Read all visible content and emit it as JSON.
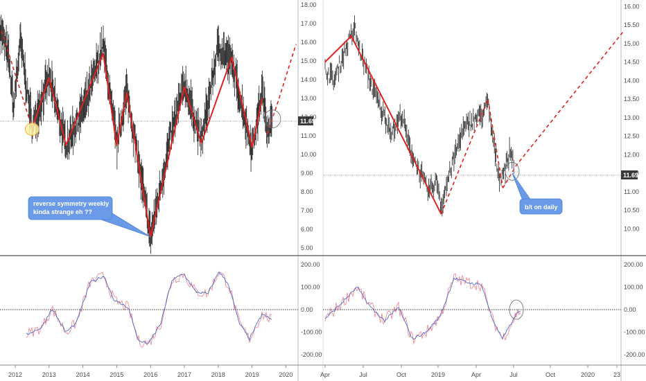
{
  "colors": {
    "bars": "#1a1a1a",
    "zigzag": "#e0201e",
    "ma_signal": "#4a68c8",
    "cci": "#f08c96",
    "callout_fill": "#6b9be8",
    "price_tag": "#3a3a3a",
    "grid_line": "#555555",
    "highlight_yellow": "#fdf3a6",
    "highlight_orange": "#f0a020"
  },
  "chart_data": [
    {
      "type": "candlestick",
      "panel": "weekly-price",
      "timeframe": "weekly",
      "x_ticks": [
        "2012",
        "2013",
        "2014",
        "2015",
        "2016",
        "2017",
        "2018",
        "2019",
        "2020"
      ],
      "y_ticks": [
        "5.00",
        "6.00",
        "7.00",
        "8.00",
        "9.00",
        "10.00",
        "11.00",
        "12.00",
        "13.00",
        "14.00",
        "15.00",
        "16.00",
        "17.00",
        "18.00"
      ],
      "ylim": [
        4.6,
        18.2
      ],
      "last_price": "11.69",
      "zigzag_solid": [
        [
          2012.5,
          11.4
        ],
        [
          2013.0,
          14.1
        ],
        [
          2013.5,
          10.5
        ],
        [
          2014.6,
          15.4
        ],
        [
          2015.0,
          10.5
        ],
        [
          2015.3,
          13.3
        ],
        [
          2016.0,
          5.6
        ],
        [
          2017.0,
          13.6
        ],
        [
          2017.5,
          10.6
        ],
        [
          2018.4,
          15.2
        ],
        [
          2019.0,
          10.4
        ],
        [
          2019.3,
          13.0
        ]
      ],
      "zigzag_dashed": [
        [
          2011.6,
          16.6
        ],
        [
          2012.5,
          11.4
        ]
      ],
      "projection_dashed": [
        [
          2019.45,
          11.1
        ],
        [
          2019.8,
          13.0
        ],
        [
          2020.3,
          15.9
        ]
      ],
      "highlights": [
        {
          "x": 2012.5,
          "y": 11.35,
          "style": "yellow"
        },
        {
          "x": 2019.6,
          "y": 11.9,
          "style": "outline"
        }
      ],
      "callout": {
        "line1": "reverse symmetry weekly",
        "line2": "kinda strange eh ??",
        "target": [
          2016.0,
          5.6
        ]
      }
    },
    {
      "type": "candlestick",
      "panel": "daily-price",
      "timeframe": "daily",
      "x_ticks": [
        "Apr",
        "Jul",
        "Oct",
        "2019",
        "Apr",
        "Jul",
        "Oct",
        "2020",
        "23"
      ],
      "y_ticks": [
        "10.00",
        "10.50",
        "11.00",
        "11.50",
        "12.00",
        "12.50",
        "13.00",
        "13.50",
        "14.00",
        "14.50",
        "15.00",
        "15.50",
        "16.00"
      ],
      "ylim": [
        9.8,
        16.1
      ],
      "last_price": "11.69",
      "zigzag_solid": [
        [
          0.0,
          14.5
        ],
        [
          1.4,
          15.2
        ],
        [
          6.2,
          10.4
        ]
      ],
      "zigzag_dashed": [
        [
          6.2,
          10.4
        ],
        [
          8.7,
          13.5
        ],
        [
          9.5,
          11.1
        ]
      ],
      "projection_dashed": [
        [
          9.5,
          11.1
        ],
        [
          10.2,
          11.7
        ],
        [
          15.9,
          15.3
        ]
      ],
      "highlights": [
        {
          "x": 10.0,
          "y": 11.55,
          "style": "outline"
        }
      ],
      "callout": {
        "line1": "b/t on daily",
        "line2": "",
        "target": [
          10.0,
          11.5
        ]
      }
    },
    {
      "type": "line",
      "panel": "weekly-oscillator",
      "y_ticks": [
        "-200.00",
        "-100.00",
        "0.00",
        "100.00",
        "200.00"
      ],
      "ylim": [
        -230,
        230
      ],
      "zero_line": 0
    },
    {
      "type": "line",
      "panel": "daily-oscillator",
      "y_ticks": [
        "-200.00",
        "-100.00",
        "0.00",
        "100.00",
        "200.00"
      ],
      "ylim": [
        -230,
        230
      ],
      "zero_line": 0
    }
  ]
}
